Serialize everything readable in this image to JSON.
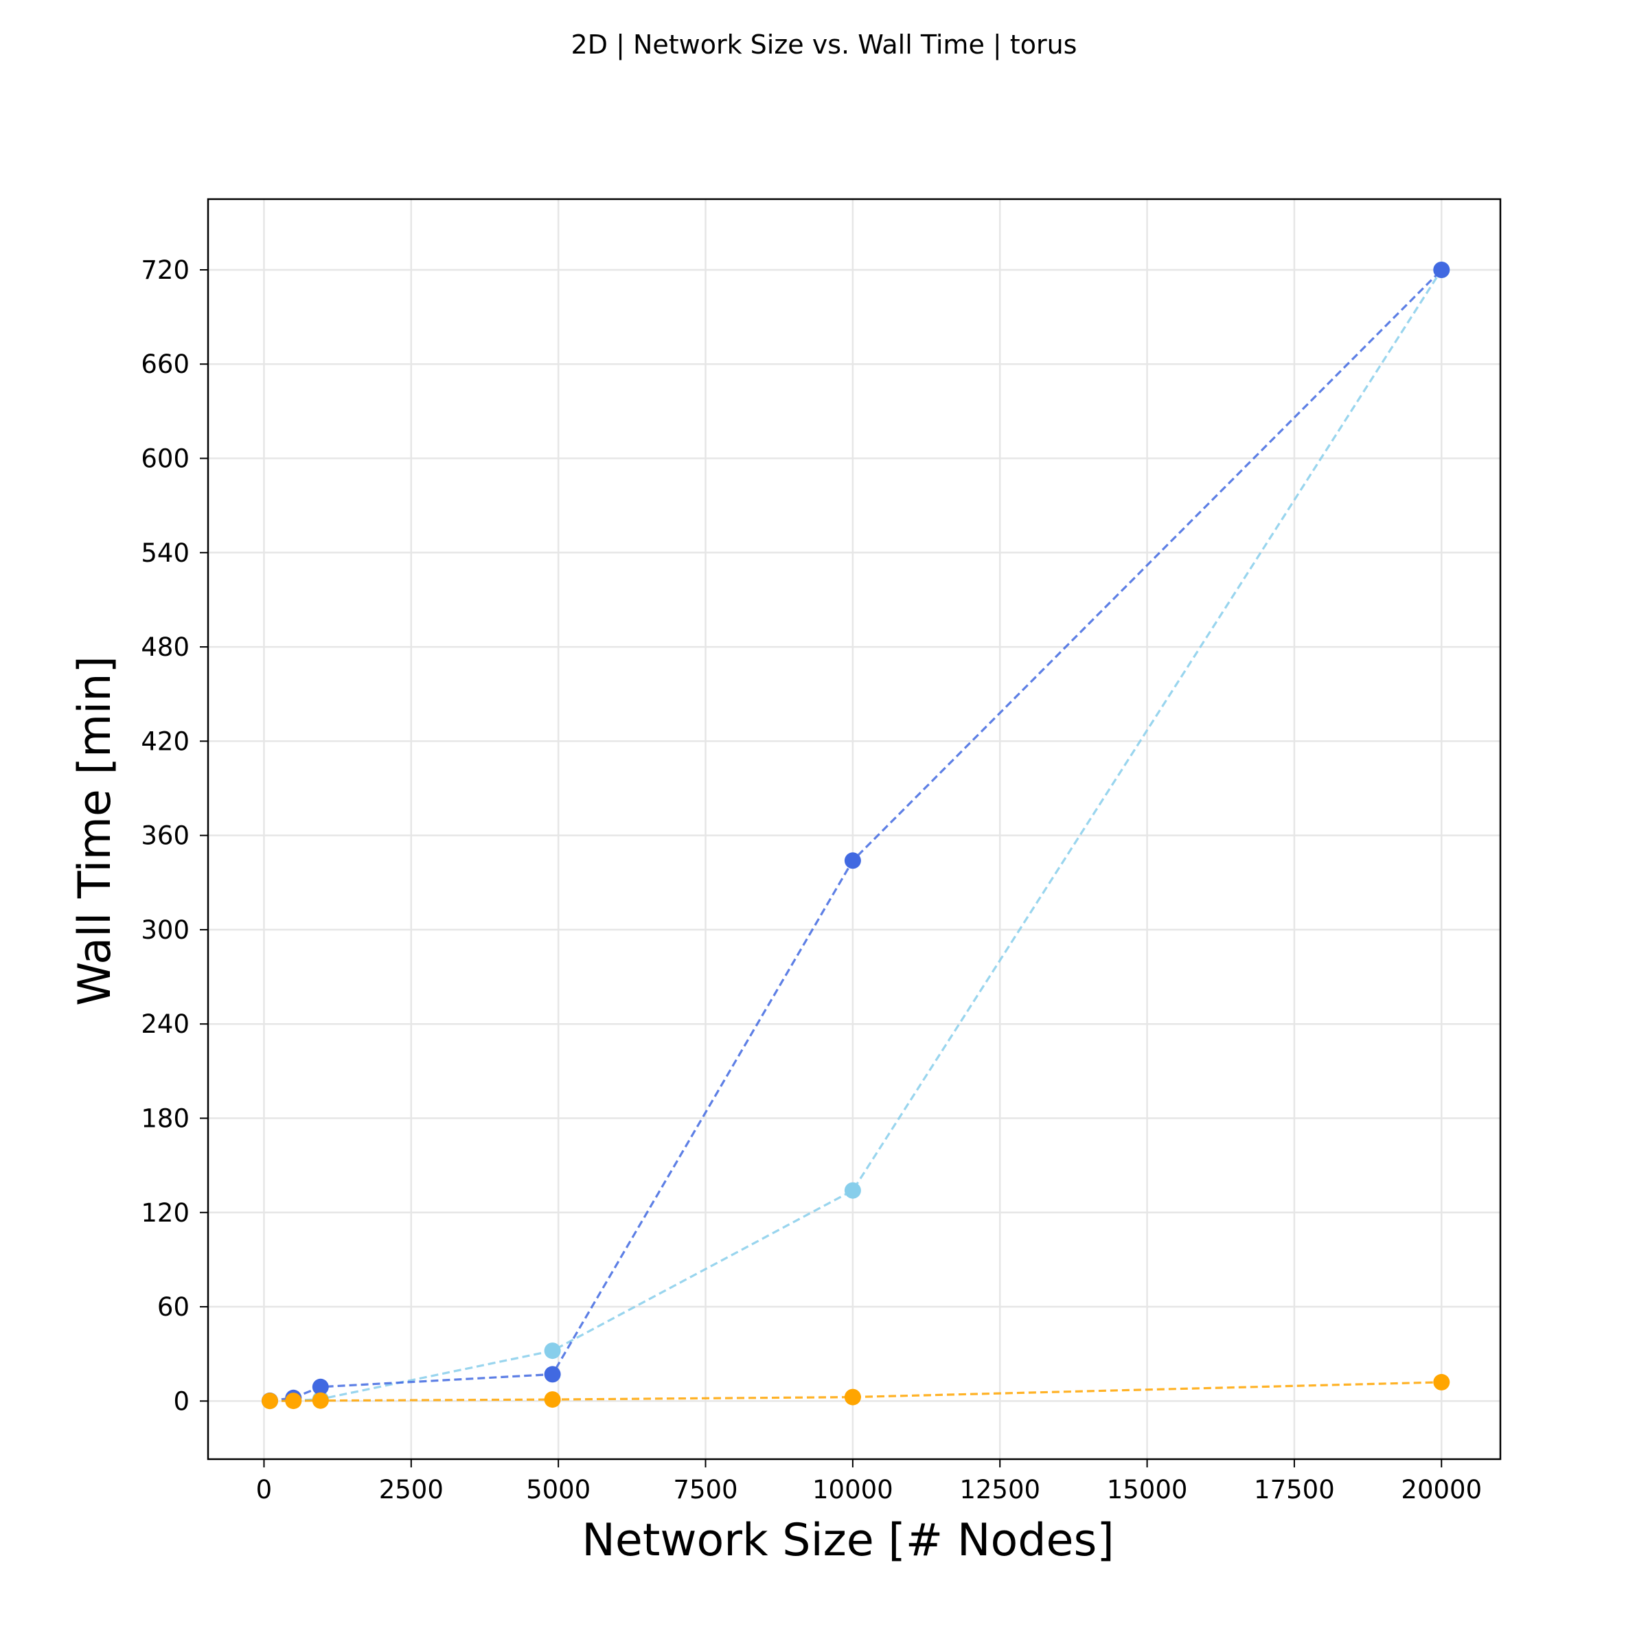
{
  "chart_data": {
    "type": "line",
    "title": "2D | Network Size vs. Wall Time | torus",
    "xlabel": "Network Size [# Nodes]",
    "ylabel": "Wall Time [min]",
    "xlim": [
      -950,
      21000
    ],
    "ylim": [
      -37,
      765
    ],
    "xticks": [
      0,
      2500,
      5000,
      7500,
      10000,
      12500,
      15000,
      17500,
      20000
    ],
    "xtick_labels": [
      "0",
      "2500",
      "5000",
      "7500",
      "10000",
      "12500",
      "15000",
      "17500",
      "20000"
    ],
    "yticks": [
      0,
      60,
      120,
      180,
      240,
      300,
      360,
      420,
      480,
      540,
      600,
      660,
      720
    ],
    "ytick_labels": [
      "0",
      "60",
      "120",
      "180",
      "240",
      "300",
      "360",
      "420",
      "480",
      "540",
      "600",
      "660",
      "720"
    ],
    "grid": true,
    "line_style": "dashed",
    "series": [
      {
        "color": "#87ceeb",
        "x": [
          100,
          500,
          961,
          4900,
          10000,
          20000
        ],
        "y": [
          0.1,
          0.3,
          1.2,
          32,
          134,
          720
        ]
      },
      {
        "color": "#4169e1",
        "x": [
          100,
          500,
          961,
          4900,
          10000,
          20000
        ],
        "y": [
          0.2,
          2,
          9,
          17,
          344,
          720
        ]
      },
      {
        "color": "#ffa500",
        "x": [
          100,
          500,
          961,
          4900,
          10000,
          20000
        ],
        "y": [
          0.05,
          0.1,
          0.3,
          1,
          2.5,
          12
        ]
      }
    ]
  }
}
